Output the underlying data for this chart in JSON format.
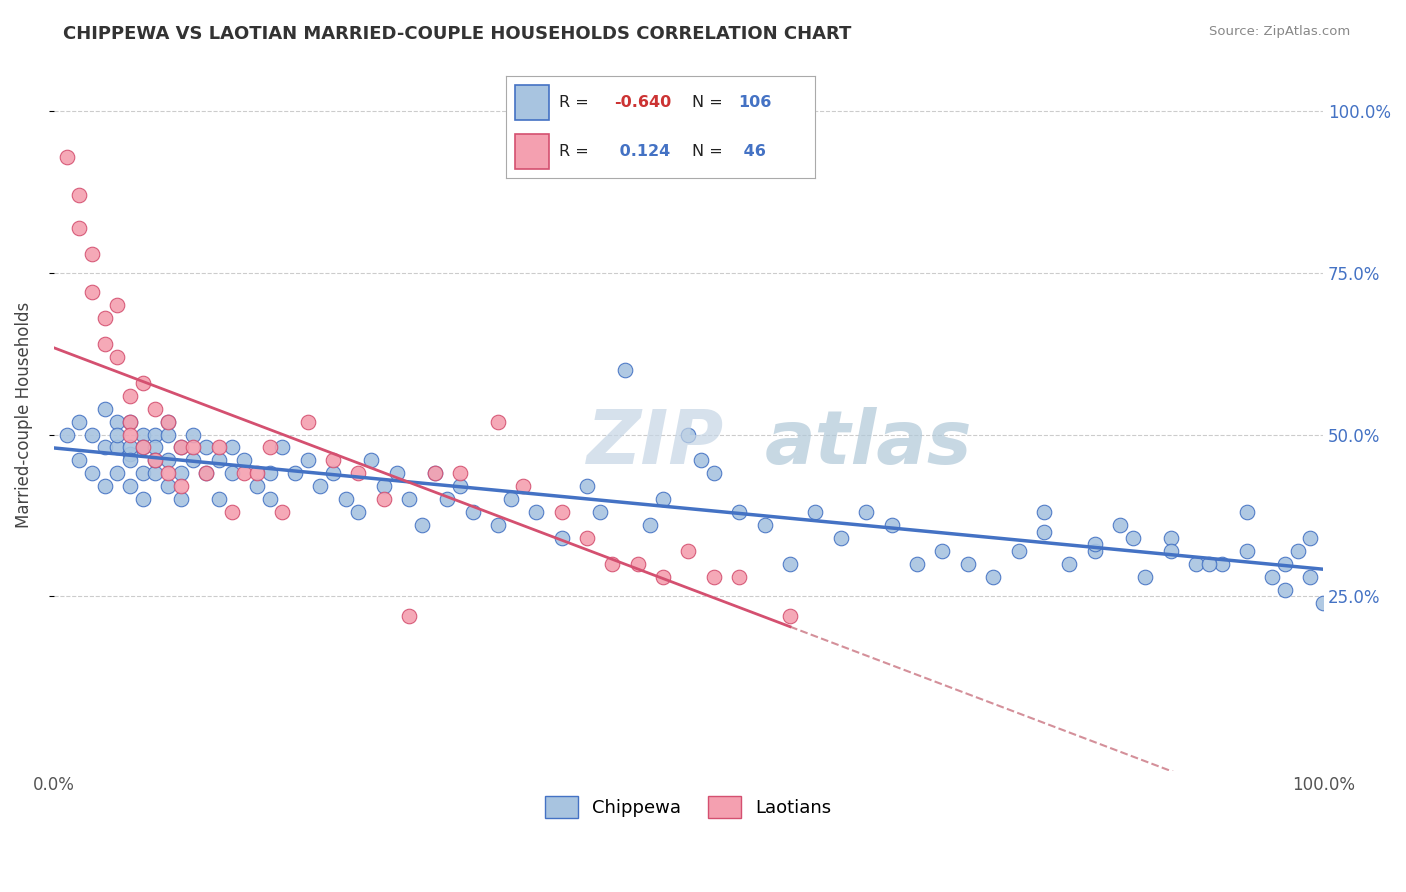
{
  "title": "CHIPPEWA VS LAOTIAN MARRIED-COUPLE HOUSEHOLDS CORRELATION CHART",
  "source": "Source: ZipAtlas.com",
  "ylabel": "Married-couple Households",
  "chippewa_color": "#a8c4e0",
  "laotian_color": "#f4a0b0",
  "trendline_blue": "#4472c4",
  "trendline_pink": "#d45070",
  "trendline_dashed_color": "#d4909a",
  "ytick_labels": [
    "25.0%",
    "50.0%",
    "75.0%",
    "100.0%"
  ],
  "ytick_positions": [
    0.25,
    0.5,
    0.75,
    1.0
  ],
  "xlim": [
    0.0,
    1.0
  ],
  "ylim": [
    -0.02,
    1.08
  ],
  "chippewa_x": [
    0.01,
    0.02,
    0.02,
    0.03,
    0.03,
    0.04,
    0.04,
    0.04,
    0.05,
    0.05,
    0.05,
    0.05,
    0.06,
    0.06,
    0.06,
    0.06,
    0.06,
    0.07,
    0.07,
    0.07,
    0.07,
    0.08,
    0.08,
    0.08,
    0.08,
    0.09,
    0.09,
    0.09,
    0.09,
    0.1,
    0.1,
    0.1,
    0.11,
    0.11,
    0.12,
    0.12,
    0.13,
    0.13,
    0.14,
    0.14,
    0.15,
    0.16,
    0.17,
    0.17,
    0.18,
    0.19,
    0.2,
    0.21,
    0.22,
    0.23,
    0.24,
    0.25,
    0.26,
    0.27,
    0.28,
    0.29,
    0.3,
    0.31,
    0.32,
    0.33,
    0.35,
    0.36,
    0.38,
    0.4,
    0.42,
    0.43,
    0.45,
    0.47,
    0.48,
    0.5,
    0.51,
    0.52,
    0.54,
    0.56,
    0.58,
    0.6,
    0.62,
    0.64,
    0.66,
    0.68,
    0.7,
    0.72,
    0.74,
    0.76,
    0.78,
    0.8,
    0.82,
    0.84,
    0.86,
    0.88,
    0.9,
    0.92,
    0.94,
    0.96,
    0.97,
    0.98,
    0.99,
    1.0,
    0.85,
    0.88,
    0.91,
    0.94,
    0.97,
    0.99,
    0.78,
    0.82
  ],
  "chippewa_y": [
    0.5,
    0.52,
    0.46,
    0.5,
    0.44,
    0.54,
    0.48,
    0.42,
    0.52,
    0.48,
    0.44,
    0.5,
    0.47,
    0.52,
    0.48,
    0.42,
    0.46,
    0.5,
    0.44,
    0.48,
    0.4,
    0.5,
    0.44,
    0.48,
    0.46,
    0.52,
    0.46,
    0.5,
    0.42,
    0.48,
    0.44,
    0.4,
    0.5,
    0.46,
    0.44,
    0.48,
    0.46,
    0.4,
    0.48,
    0.44,
    0.46,
    0.42,
    0.44,
    0.4,
    0.48,
    0.44,
    0.46,
    0.42,
    0.44,
    0.4,
    0.38,
    0.46,
    0.42,
    0.44,
    0.4,
    0.36,
    0.44,
    0.4,
    0.42,
    0.38,
    0.36,
    0.4,
    0.38,
    0.34,
    0.42,
    0.38,
    0.6,
    0.36,
    0.4,
    0.5,
    0.46,
    0.44,
    0.38,
    0.36,
    0.3,
    0.38,
    0.34,
    0.38,
    0.36,
    0.3,
    0.32,
    0.3,
    0.28,
    0.32,
    0.38,
    0.3,
    0.32,
    0.36,
    0.28,
    0.34,
    0.3,
    0.3,
    0.38,
    0.28,
    0.3,
    0.32,
    0.34,
    0.24,
    0.34,
    0.32,
    0.3,
    0.32,
    0.26,
    0.28,
    0.35,
    0.33
  ],
  "laotian_x": [
    0.01,
    0.02,
    0.02,
    0.03,
    0.03,
    0.04,
    0.04,
    0.05,
    0.05,
    0.06,
    0.06,
    0.06,
    0.07,
    0.07,
    0.08,
    0.08,
    0.09,
    0.09,
    0.1,
    0.1,
    0.11,
    0.12,
    0.13,
    0.14,
    0.15,
    0.16,
    0.17,
    0.18,
    0.2,
    0.22,
    0.24,
    0.26,
    0.28,
    0.3,
    0.32,
    0.35,
    0.37,
    0.4,
    0.42,
    0.44,
    0.46,
    0.48,
    0.5,
    0.52,
    0.54,
    0.58
  ],
  "laotian_y": [
    0.93,
    0.87,
    0.82,
    0.78,
    0.72,
    0.68,
    0.64,
    0.7,
    0.62,
    0.56,
    0.52,
    0.5,
    0.58,
    0.48,
    0.54,
    0.46,
    0.52,
    0.44,
    0.48,
    0.42,
    0.48,
    0.44,
    0.48,
    0.38,
    0.44,
    0.44,
    0.48,
    0.38,
    0.52,
    0.46,
    0.44,
    0.4,
    0.22,
    0.44,
    0.44,
    0.52,
    0.42,
    0.38,
    0.34,
    0.3,
    0.3,
    0.28,
    0.32,
    0.28,
    0.28,
    0.22
  ]
}
